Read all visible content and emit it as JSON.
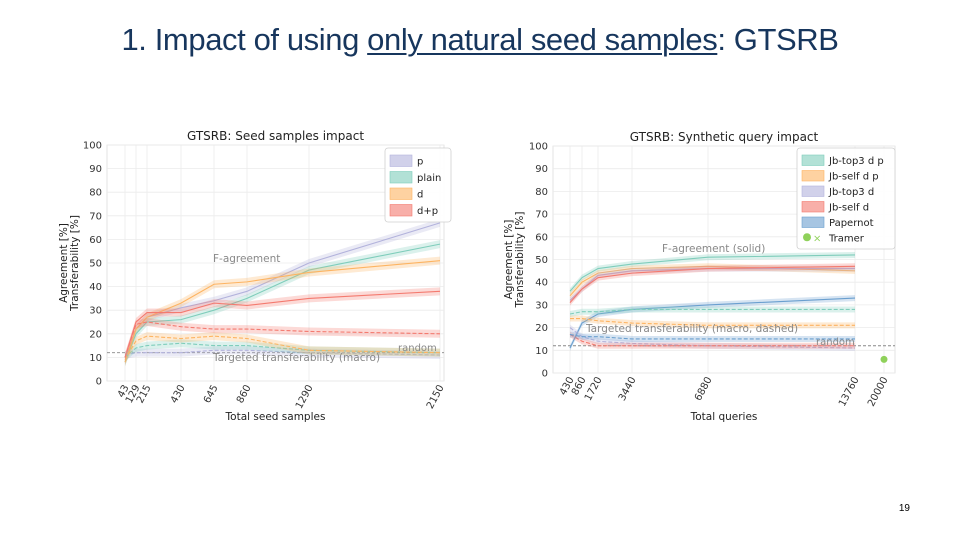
{
  "slide": {
    "title_pre": "1. Impact of using ",
    "title_underlined": "only natural seed samples",
    "title_post": ": GTSRB",
    "page_number": "19"
  },
  "chart_data": [
    {
      "type": "line",
      "title": "GTSRB: Seed samples impact",
      "xlabel": "Total seed samples",
      "ylabel": "Agreement [%]\nTransferability [%]",
      "x_ticks": [
        43,
        129,
        215,
        430,
        645,
        860,
        1290,
        2150
      ],
      "x_scale": "categorical-uneven",
      "ylim": [
        0,
        100
      ],
      "y_ticks": [
        0,
        10,
        20,
        30,
        40,
        50,
        60,
        70,
        80,
        90,
        100
      ],
      "grid": true,
      "legend_position": "top-right",
      "annotations": [
        "F-agreement",
        "Targeted transferability (macro)",
        "random"
      ],
      "random_baseline": 12,
      "series": [
        {
          "name": "p",
          "color": "#b3b3dc",
          "metric": "F-agreement",
          "x": [
            43,
            129,
            215,
            430,
            645,
            860,
            1290,
            2150
          ],
          "y": [
            8,
            22,
            27,
            31,
            34,
            38,
            50,
            67
          ]
        },
        {
          "name": "plain",
          "color": "#7fcdbb",
          "metric": "F-agreement",
          "x": [
            43,
            129,
            215,
            430,
            645,
            860,
            1290,
            2150
          ],
          "y": [
            8,
            20,
            25,
            26,
            30,
            35,
            47,
            58
          ]
        },
        {
          "name": "d",
          "color": "#fdb462",
          "metric": "F-agreement",
          "x": [
            43,
            129,
            215,
            430,
            645,
            860,
            1290,
            2150
          ],
          "y": [
            8,
            22,
            27,
            33,
            41,
            42,
            46,
            51
          ]
        },
        {
          "name": "d+p",
          "color": "#f47a6f",
          "metric": "F-agreement",
          "x": [
            43,
            129,
            215,
            430,
            645,
            860,
            1290,
            2150
          ],
          "y": [
            10,
            25,
            29,
            29,
            33,
            32,
            35,
            38
          ]
        },
        {
          "name": "p",
          "color": "#b3b3dc",
          "metric": "Targeted transferability",
          "x": [
            43,
            129,
            215,
            430,
            645,
            860,
            1290,
            2150
          ],
          "y": [
            11,
            12,
            12,
            12,
            13,
            13,
            12,
            11
          ]
        },
        {
          "name": "plain",
          "color": "#7fcdbb",
          "metric": "Targeted transferability",
          "x": [
            43,
            129,
            215,
            430,
            645,
            860,
            1290,
            2150
          ],
          "y": [
            10,
            14,
            15,
            16,
            15,
            15,
            13,
            12
          ]
        },
        {
          "name": "d",
          "color": "#fdb462",
          "metric": "Targeted transferability",
          "x": [
            43,
            129,
            215,
            430,
            645,
            860,
            1290,
            2150
          ],
          "y": [
            9,
            17,
            19,
            18,
            19,
            18,
            13,
            12
          ]
        },
        {
          "name": "d+p",
          "color": "#f47a6f",
          "metric": "Targeted transferability",
          "x": [
            43,
            129,
            215,
            430,
            645,
            860,
            1290,
            2150
          ],
          "y": [
            10,
            24,
            25,
            23,
            22,
            22,
            21,
            20
          ]
        }
      ]
    },
    {
      "type": "line",
      "title": "GTSRB: Synthetic query impact",
      "xlabel": "Total queries",
      "ylabel": "Agreement [%]\nTransferability [%]",
      "x_ticks": [
        430,
        860,
        1720,
        3440,
        6880,
        13760,
        20000
      ],
      "ylim": [
        0,
        100
      ],
      "y_ticks": [
        0,
        10,
        20,
        30,
        40,
        50,
        60,
        70,
        80,
        90,
        100
      ],
      "grid": true,
      "legend_position": "top-right",
      "annotations": [
        "F-agreement (solid)",
        "Targeted transferability (macro, dashed)",
        "random"
      ],
      "random_baseline": 12,
      "series": [
        {
          "name": "Jb-top3 d p",
          "color": "#7fcdbb",
          "metric": "F-agreement",
          "x": [
            430,
            860,
            1720,
            3440,
            6880,
            13760
          ],
          "y": [
            36,
            42,
            46,
            48,
            51,
            52
          ]
        },
        {
          "name": "Jb-self d p",
          "color": "#fdb462",
          "metric": "F-agreement",
          "x": [
            430,
            860,
            1720,
            3440,
            6880,
            13760
          ],
          "y": [
            34,
            40,
            44,
            46,
            47,
            45
          ]
        },
        {
          "name": "Jb-top3 d",
          "color": "#b3b3dc",
          "metric": "F-agreement",
          "x": [
            430,
            860,
            1720,
            3440,
            6880,
            13760
          ],
          "y": [
            32,
            37,
            43,
            45,
            46,
            46
          ]
        },
        {
          "name": "Jb-self d",
          "color": "#f47a6f",
          "metric": "F-agreement",
          "x": [
            430,
            860,
            1720,
            3440,
            6880,
            13760
          ],
          "y": [
            31,
            37,
            42,
            44,
            46,
            47
          ]
        },
        {
          "name": "Papernot",
          "color": "#6a9fcf",
          "metric": "F-agreement",
          "x": [
            430,
            860,
            1720,
            3440,
            6880,
            13760
          ],
          "y": [
            11,
            22,
            26,
            28,
            30,
            33
          ]
        },
        {
          "name": "Jb-top3 d p",
          "color": "#7fcdbb",
          "metric": "Targeted transferability",
          "x": [
            430,
            860,
            1720,
            3440,
            6880,
            13760
          ],
          "y": [
            26,
            27,
            27,
            28,
            28,
            28
          ]
        },
        {
          "name": "Jb-self d p",
          "color": "#fdb462",
          "metric": "Targeted transferability",
          "x": [
            430,
            860,
            1720,
            3440,
            6880,
            13760
          ],
          "y": [
            24,
            24,
            23,
            22,
            21,
            21
          ]
        },
        {
          "name": "Jb-top3 d",
          "color": "#b3b3dc",
          "metric": "Targeted transferability",
          "x": [
            430,
            860,
            1720,
            3440,
            6880,
            13760
          ],
          "y": [
            20,
            16,
            14,
            13,
            12,
            11
          ]
        },
        {
          "name": "Jb-self d",
          "color": "#f47a6f",
          "metric": "Targeted transferability",
          "x": [
            430,
            860,
            1720,
            3440,
            6880,
            13760
          ],
          "y": [
            17,
            14,
            12,
            12,
            12,
            12
          ]
        },
        {
          "name": "Papernot",
          "color": "#6a9fcf",
          "metric": "Targeted transferability",
          "x": [
            430,
            860,
            1720,
            3440,
            6880,
            13760
          ],
          "y": [
            17,
            16,
            16,
            15,
            15,
            15
          ]
        },
        {
          "name": "Tramer",
          "color": "#8fd15a",
          "metric": "F-agreement (dot) / transferability (x)",
          "x": [
            20000
          ],
          "y": [
            6
          ]
        }
      ]
    }
  ]
}
